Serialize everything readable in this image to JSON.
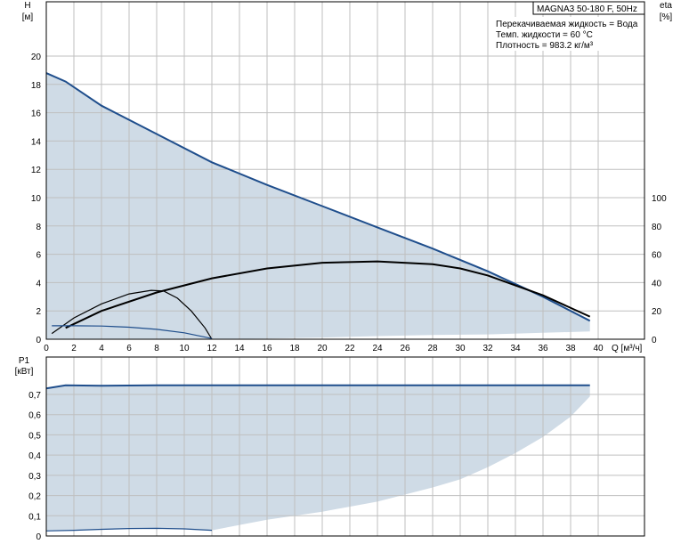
{
  "chart_data": [
    {
      "type": "line",
      "title": "MAGNA3 50-180 F, 50Hz",
      "annotations": [
        "Перекачиваемая жидкость = Вода",
        "Темп. жидкости = 60 °C",
        "Плотность = 983.2 кг/м³"
      ],
      "ylabel_name": "H",
      "ylabel_unit": "[м]",
      "y2label_name": "eta",
      "y2label_unit": "[%]",
      "xlabel": "Q [м³/ч]",
      "xlim": [
        0,
        40
      ],
      "ylim": [
        0,
        20
      ],
      "y2lim": [
        0,
        100
      ],
      "x_ticks": [
        "0",
        "2",
        "4",
        "6",
        "8",
        "10",
        "12",
        "14",
        "16",
        "18",
        "20",
        "22",
        "24",
        "26",
        "28",
        "30",
        "32",
        "34",
        "36",
        "38",
        "40"
      ],
      "y_ticks": [
        "0",
        "2",
        "4",
        "6",
        "8",
        "10",
        "12",
        "14",
        "16",
        "18",
        "20"
      ],
      "y2_ticks": [
        "0",
        "20",
        "40",
        "60",
        "80",
        "100"
      ],
      "grid": true,
      "series": [
        {
          "role": "head_max",
          "axis": "left",
          "color": "#1f4e8c",
          "x": [
            0,
            1.4,
            4,
            8,
            12,
            16,
            20,
            24,
            28,
            32,
            36,
            39.4
          ],
          "y": [
            18.8,
            18.2,
            16.5,
            14.5,
            12.5,
            10.9,
            9.4,
            7.9,
            6.4,
            4.8,
            3.0,
            1.3
          ]
        },
        {
          "role": "efficiency_max",
          "axis": "right",
          "color": "#000000",
          "x": [
            1.4,
            4,
            8,
            12,
            16,
            20,
            24,
            28,
            30,
            32,
            36,
            39.4
          ],
          "y": [
            8,
            20,
            33,
            43,
            50,
            54,
            55,
            53,
            50,
            45,
            31,
            16
          ]
        },
        {
          "role": "efficiency_min",
          "axis": "right",
          "color": "#000000",
          "x": [
            0.4,
            2,
            4,
            6,
            7.6,
            8.5,
            9.5,
            10.5,
            11.5,
            12
          ],
          "y": [
            4,
            15,
            25,
            32,
            34.5,
            34,
            29,
            20,
            8,
            0
          ]
        },
        {
          "role": "head_min",
          "axis": "left",
          "color": "#1f4e8c",
          "x": [
            0.4,
            2,
            4,
            6,
            8,
            10,
            12
          ],
          "y": [
            0.95,
            0.95,
            0.93,
            0.85,
            0.7,
            0.45,
            0.05
          ]
        }
      ],
      "area_lower": {
        "x": [
          12,
          16,
          20,
          24,
          28,
          32,
          36,
          39.4
        ],
        "y": [
          0,
          0.05,
          0.12,
          0.22,
          0.3,
          0.34,
          0.45,
          0.55
        ]
      }
    },
    {
      "type": "line",
      "ylabel_name": "P1",
      "ylabel_unit": "[кВт]",
      "xlim": [
        0,
        40
      ],
      "ylim": [
        0,
        0.8
      ],
      "y_ticks": [
        "0",
        "0,1",
        "0,2",
        "0,3",
        "0,4",
        "0,5",
        "0,6",
        "0,7"
      ],
      "grid": true,
      "series": [
        {
          "role": "power_max",
          "color": "#1f4e8c",
          "x": [
            0,
            1.4,
            4,
            8,
            12,
            16,
            20,
            24,
            28,
            32,
            36,
            39.4
          ],
          "y": [
            0.73,
            0.745,
            0.743,
            0.745,
            0.745,
            0.745,
            0.745,
            0.745,
            0.745,
            0.745,
            0.745,
            0.745
          ]
        },
        {
          "role": "power_min",
          "color": "#1f4e8c",
          "x": [
            0,
            2,
            4,
            6,
            8,
            10,
            12
          ],
          "y": [
            0.025,
            0.028,
            0.033,
            0.037,
            0.038,
            0.035,
            0.028
          ]
        }
      ],
      "area_lower": {
        "x": [
          12,
          16,
          20,
          24,
          28,
          30,
          32,
          34,
          36,
          38,
          39.4
        ],
        "y": [
          0.028,
          0.08,
          0.12,
          0.17,
          0.24,
          0.28,
          0.34,
          0.41,
          0.49,
          0.59,
          0.69
        ]
      }
    }
  ]
}
